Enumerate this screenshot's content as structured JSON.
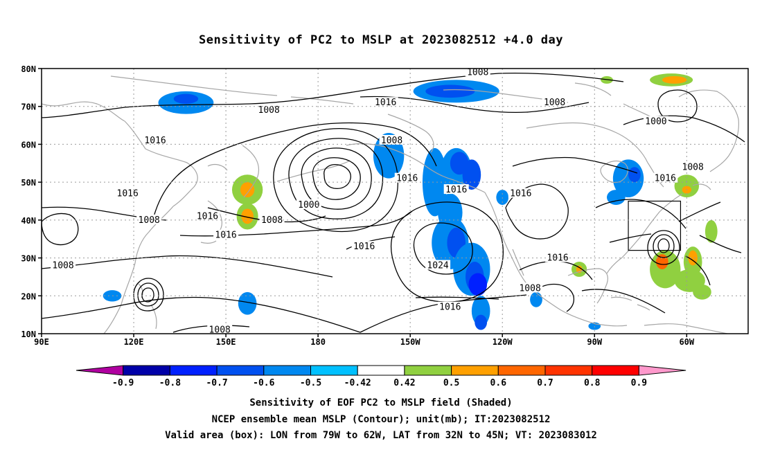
{
  "title": "Sensitivity of PC2 to MSLP at 2023082512 +4.0 day",
  "lat_labels": [
    "80N",
    "70N",
    "60N",
    "50N",
    "40N",
    "30N",
    "20N",
    "10N"
  ],
  "lon_labels": [
    "90E",
    "120E",
    "150E",
    "180",
    "150W",
    "120W",
    "90W",
    "60W"
  ],
  "contour_labels": [
    {
      "text": "1008",
      "lon": -128,
      "lat": 79
    },
    {
      "text": "1016",
      "lon": -158,
      "lat": 71
    },
    {
      "text": "1008",
      "lon": 164,
      "lat": 69
    },
    {
      "text": "1008",
      "lon": -103,
      "lat": 71
    },
    {
      "text": "1000",
      "lon": -70,
      "lat": 66
    },
    {
      "text": "1008",
      "lon": -156,
      "lat": 61
    },
    {
      "text": "1016",
      "lon": 127,
      "lat": 61
    },
    {
      "text": "1016",
      "lon": -135,
      "lat": 48
    },
    {
      "text": "1016",
      "lon": -151,
      "lat": 51
    },
    {
      "text": "1016",
      "lon": 118,
      "lat": 47
    },
    {
      "text": "1016",
      "lon": -114,
      "lat": 47
    },
    {
      "text": "1016",
      "lon": -67,
      "lat": 51
    },
    {
      "text": "1008",
      "lon": -58,
      "lat": 54
    },
    {
      "text": "1000",
      "lon": 177,
      "lat": 44
    },
    {
      "text": "1008",
      "lon": 125,
      "lat": 40
    },
    {
      "text": "1016",
      "lon": 144,
      "lat": 41
    },
    {
      "text": "1008",
      "lon": 165,
      "lat": 40
    },
    {
      "text": "1016",
      "lon": 150,
      "lat": 36
    },
    {
      "text": "1016",
      "lon": -165,
      "lat": 33
    },
    {
      "text": "1024",
      "lon": -141,
      "lat": 28
    },
    {
      "text": "1016",
      "lon": -102,
      "lat": 30
    },
    {
      "text": "1008",
      "lon": 97,
      "lat": 28
    },
    {
      "text": "1008",
      "lon": -111,
      "lat": 22
    },
    {
      "text": "1016",
      "lon": -137,
      "lat": 17
    },
    {
      "text": "1008",
      "lon": 148,
      "lat": 11
    }
  ],
  "shading": [
    {
      "lon": 137,
      "lat": 71,
      "rx": 9,
      "ry": 3,
      "value": -0.5
    },
    {
      "lon": 137,
      "lat": 72,
      "rx": 4,
      "ry": 1.3,
      "value": -0.6
    },
    {
      "lon": -135,
      "lat": 74,
      "rx": 14,
      "ry": 3,
      "value": -0.5
    },
    {
      "lon": -137,
      "lat": 74,
      "rx": 8,
      "ry": 1.7,
      "value": -0.6
    },
    {
      "lon": -86,
      "lat": 77,
      "rx": 2,
      "ry": 1,
      "value": 0.5
    },
    {
      "lon": -65,
      "lat": 77,
      "rx": 7,
      "ry": 1.7,
      "value": 0.5
    },
    {
      "lon": -64,
      "lat": 77,
      "rx": 4,
      "ry": 1,
      "value": 0.6
    },
    {
      "lon": -157,
      "lat": 57,
      "rx": 5,
      "ry": 6,
      "value": -0.5
    },
    {
      "lon": 157,
      "lat": 48,
      "rx": 5,
      "ry": 4,
      "value": 0.5
    },
    {
      "lon": 157,
      "lat": 48,
      "rx": 2.3,
      "ry": 2,
      "value": 0.6
    },
    {
      "lon": 157,
      "lat": 41,
      "rx": 3.5,
      "ry": 3.5,
      "value": 0.5
    },
    {
      "lon": 157,
      "lat": 41,
      "rx": 2,
      "ry": 2,
      "value": 0.6
    },
    {
      "lon": 157,
      "lat": 18,
      "rx": 3,
      "ry": 3,
      "value": -0.5
    },
    {
      "lon": 113,
      "lat": 20,
      "rx": 3,
      "ry": 1.5,
      "value": -0.5
    },
    {
      "lon": -142,
      "lat": 50,
      "rx": 4,
      "ry": 9,
      "value": -0.5
    },
    {
      "lon": -135,
      "lat": 53,
      "rx": 5,
      "ry": 6,
      "value": -0.5
    },
    {
      "lon": -134,
      "lat": 55,
      "rx": 3,
      "ry": 3,
      "value": -0.6
    },
    {
      "lon": -130,
      "lat": 52,
      "rx": 3,
      "ry": 4,
      "value": -0.6
    },
    {
      "lon": -137,
      "lat": 42,
      "rx": 4,
      "ry": 5,
      "value": -0.5
    },
    {
      "lon": -137,
      "lat": 34,
      "rx": 6,
      "ry": 7,
      "value": -0.5
    },
    {
      "lon": -135,
      "lat": 34,
      "rx": 3,
      "ry": 4,
      "value": -0.6
    },
    {
      "lon": -130,
      "lat": 27,
      "rx": 6,
      "ry": 7,
      "value": -0.5
    },
    {
      "lon": -129,
      "lat": 25,
      "rx": 3,
      "ry": 4,
      "value": -0.6
    },
    {
      "lon": -128,
      "lat": 23,
      "rx": 3,
      "ry": 3,
      "value": -0.7
    },
    {
      "lon": -127,
      "lat": 16,
      "rx": 3,
      "ry": 4,
      "value": -0.5
    },
    {
      "lon": -127,
      "lat": 13,
      "rx": 2,
      "ry": 2,
      "value": -0.6
    },
    {
      "lon": -120,
      "lat": 46,
      "rx": 2,
      "ry": 2,
      "value": -0.5
    },
    {
      "lon": -109,
      "lat": 19,
      "rx": 2,
      "ry": 2,
      "value": -0.5
    },
    {
      "lon": -95,
      "lat": 27,
      "rx": 2.5,
      "ry": 2,
      "value": 0.5
    },
    {
      "lon": -95,
      "lat": 27,
      "rx": 1,
      "ry": 1,
      "value": 0.6
    },
    {
      "lon": -90,
      "lat": 12,
      "rx": 2,
      "ry": 1,
      "value": -0.5
    },
    {
      "lon": -83,
      "lat": 46,
      "rx": 3,
      "ry": 2,
      "value": -0.5
    },
    {
      "lon": -79,
      "lat": 51,
      "rx": 5,
      "ry": 5,
      "value": -0.5
    },
    {
      "lon": -77,
      "lat": 52,
      "rx": 2,
      "ry": 2,
      "value": -0.6
    },
    {
      "lon": -60,
      "lat": 49,
      "rx": 4,
      "ry": 3,
      "value": 0.5
    },
    {
      "lon": -60,
      "lat": 48,
      "rx": 1.5,
      "ry": 1,
      "value": 0.6
    },
    {
      "lon": -67,
      "lat": 27,
      "rx": 5,
      "ry": 5,
      "value": 0.5
    },
    {
      "lon": -68,
      "lat": 29,
      "rx": 2,
      "ry": 2,
      "value": 0.7
    },
    {
      "lon": -59,
      "lat": 24,
      "rx": 5,
      "ry": 3,
      "value": 0.5
    },
    {
      "lon": -58,
      "lat": 29,
      "rx": 3,
      "ry": 4,
      "value": 0.5
    },
    {
      "lon": -58,
      "lat": 30,
      "rx": 1.5,
      "ry": 2,
      "value": 0.6
    },
    {
      "lon": -52,
      "lat": 37,
      "rx": 2,
      "ry": 3,
      "value": 0.5
    },
    {
      "lon": -55,
      "lat": 21,
      "rx": 3,
      "ry": 2,
      "value": 0.5
    }
  ],
  "colorbar": {
    "colors": [
      "#b000a0",
      "#0000a8",
      "#0020ff",
      "#0050f0",
      "#0088f0",
      "#00c0ff",
      "#ffffff",
      "#90d040",
      "#ffa000",
      "#ff6600",
      "#ff3300",
      "#ff0000",
      "#ff99cc"
    ],
    "tick_labels": [
      "-0.9",
      "-0.8",
      "-0.7",
      "-0.6",
      "-0.5",
      "-0.42",
      "0.42",
      "0.5",
      "0.6",
      "0.7",
      "0.8",
      "0.9"
    ]
  },
  "valid_box": {
    "lon_west": -79,
    "lon_east": -62,
    "lat_south": 32,
    "lat_north": 45
  },
  "captions": [
    "Sensitivity of EOF PC2 to MSLP field (Shaded)",
    "NCEP ensemble mean MSLP (Contour); unit(mb); IT:2023082512",
    "Valid area (box): LON from 79W to 62W, LAT from 32N to 45N; VT: 2023083012"
  ]
}
